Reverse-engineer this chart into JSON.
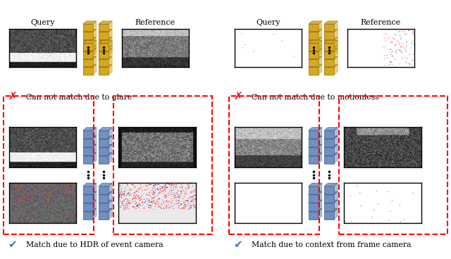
{
  "bg_color": "#ffffff",
  "gold_color": "#D4A820",
  "blue_color": "#7090C0",
  "red_dashed_color": "#FF0000",
  "text_color": "#000000",
  "cross_label_left": "Can not match due to glare",
  "cross_label_right": "Can not match due to motionless",
  "check_label_left": "Match due to HDR of event camera",
  "check_label_right": "Match due to context from frame camera",
  "label_query": "Query",
  "label_reference": "Reference"
}
